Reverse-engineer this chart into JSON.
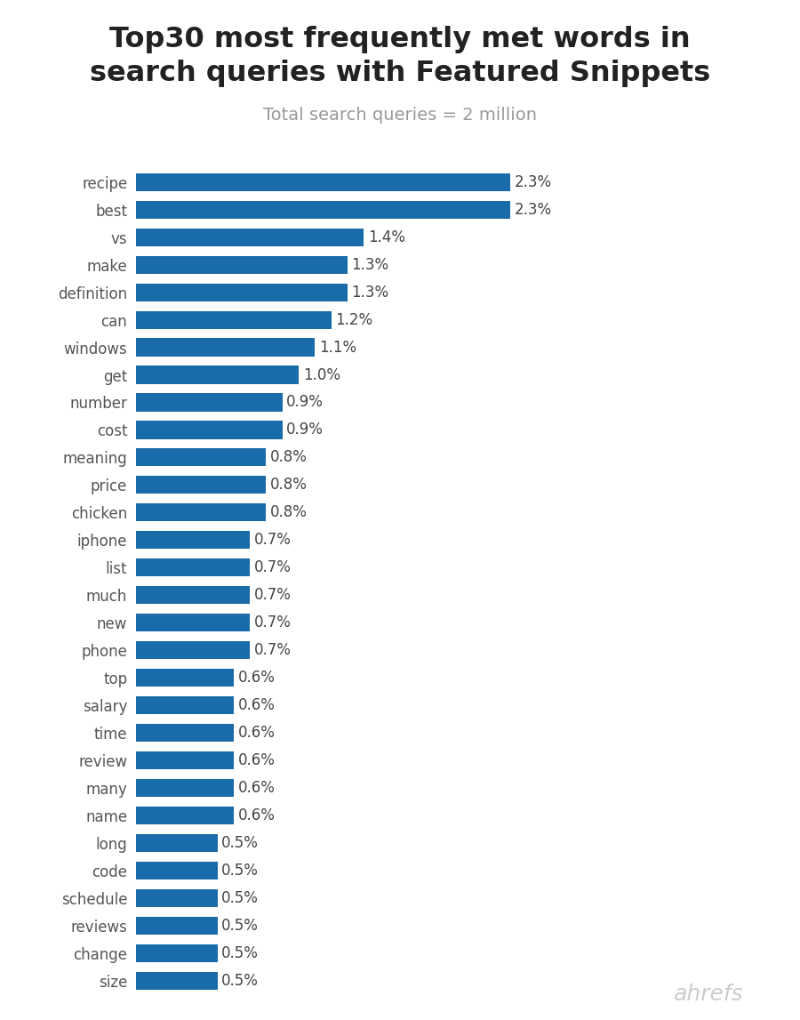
{
  "title": "Top30 most frequently met words in\nsearch queries with Featured Snippets",
  "subtitle": "Total search queries = 2 million",
  "watermark": "ahrefs",
  "bar_color": "#1a6baa",
  "categories": [
    "recipe",
    "best",
    "vs",
    "make",
    "definition",
    "can",
    "windows",
    "get",
    "number",
    "cost",
    "meaning",
    "price",
    "chicken",
    "iphone",
    "list",
    "much",
    "new",
    "phone",
    "top",
    "salary",
    "time",
    "review",
    "many",
    "name",
    "long",
    "code",
    "schedule",
    "reviews",
    "change",
    "size"
  ],
  "values": [
    2.3,
    2.3,
    1.4,
    1.3,
    1.3,
    1.2,
    1.1,
    1.0,
    0.9,
    0.9,
    0.8,
    0.8,
    0.8,
    0.7,
    0.7,
    0.7,
    0.7,
    0.7,
    0.6,
    0.6,
    0.6,
    0.6,
    0.6,
    0.6,
    0.5,
    0.5,
    0.5,
    0.5,
    0.5,
    0.5
  ],
  "title_fontsize": 23,
  "subtitle_fontsize": 14,
  "label_fontsize": 12,
  "tick_fontsize": 12,
  "watermark_fontsize": 18,
  "background_color": "#ffffff",
  "title_color": "#222222",
  "subtitle_color": "#999999",
  "bar_label_color": "#444444",
  "ylabel_color": "#555555",
  "watermark_color": "#cccccc"
}
